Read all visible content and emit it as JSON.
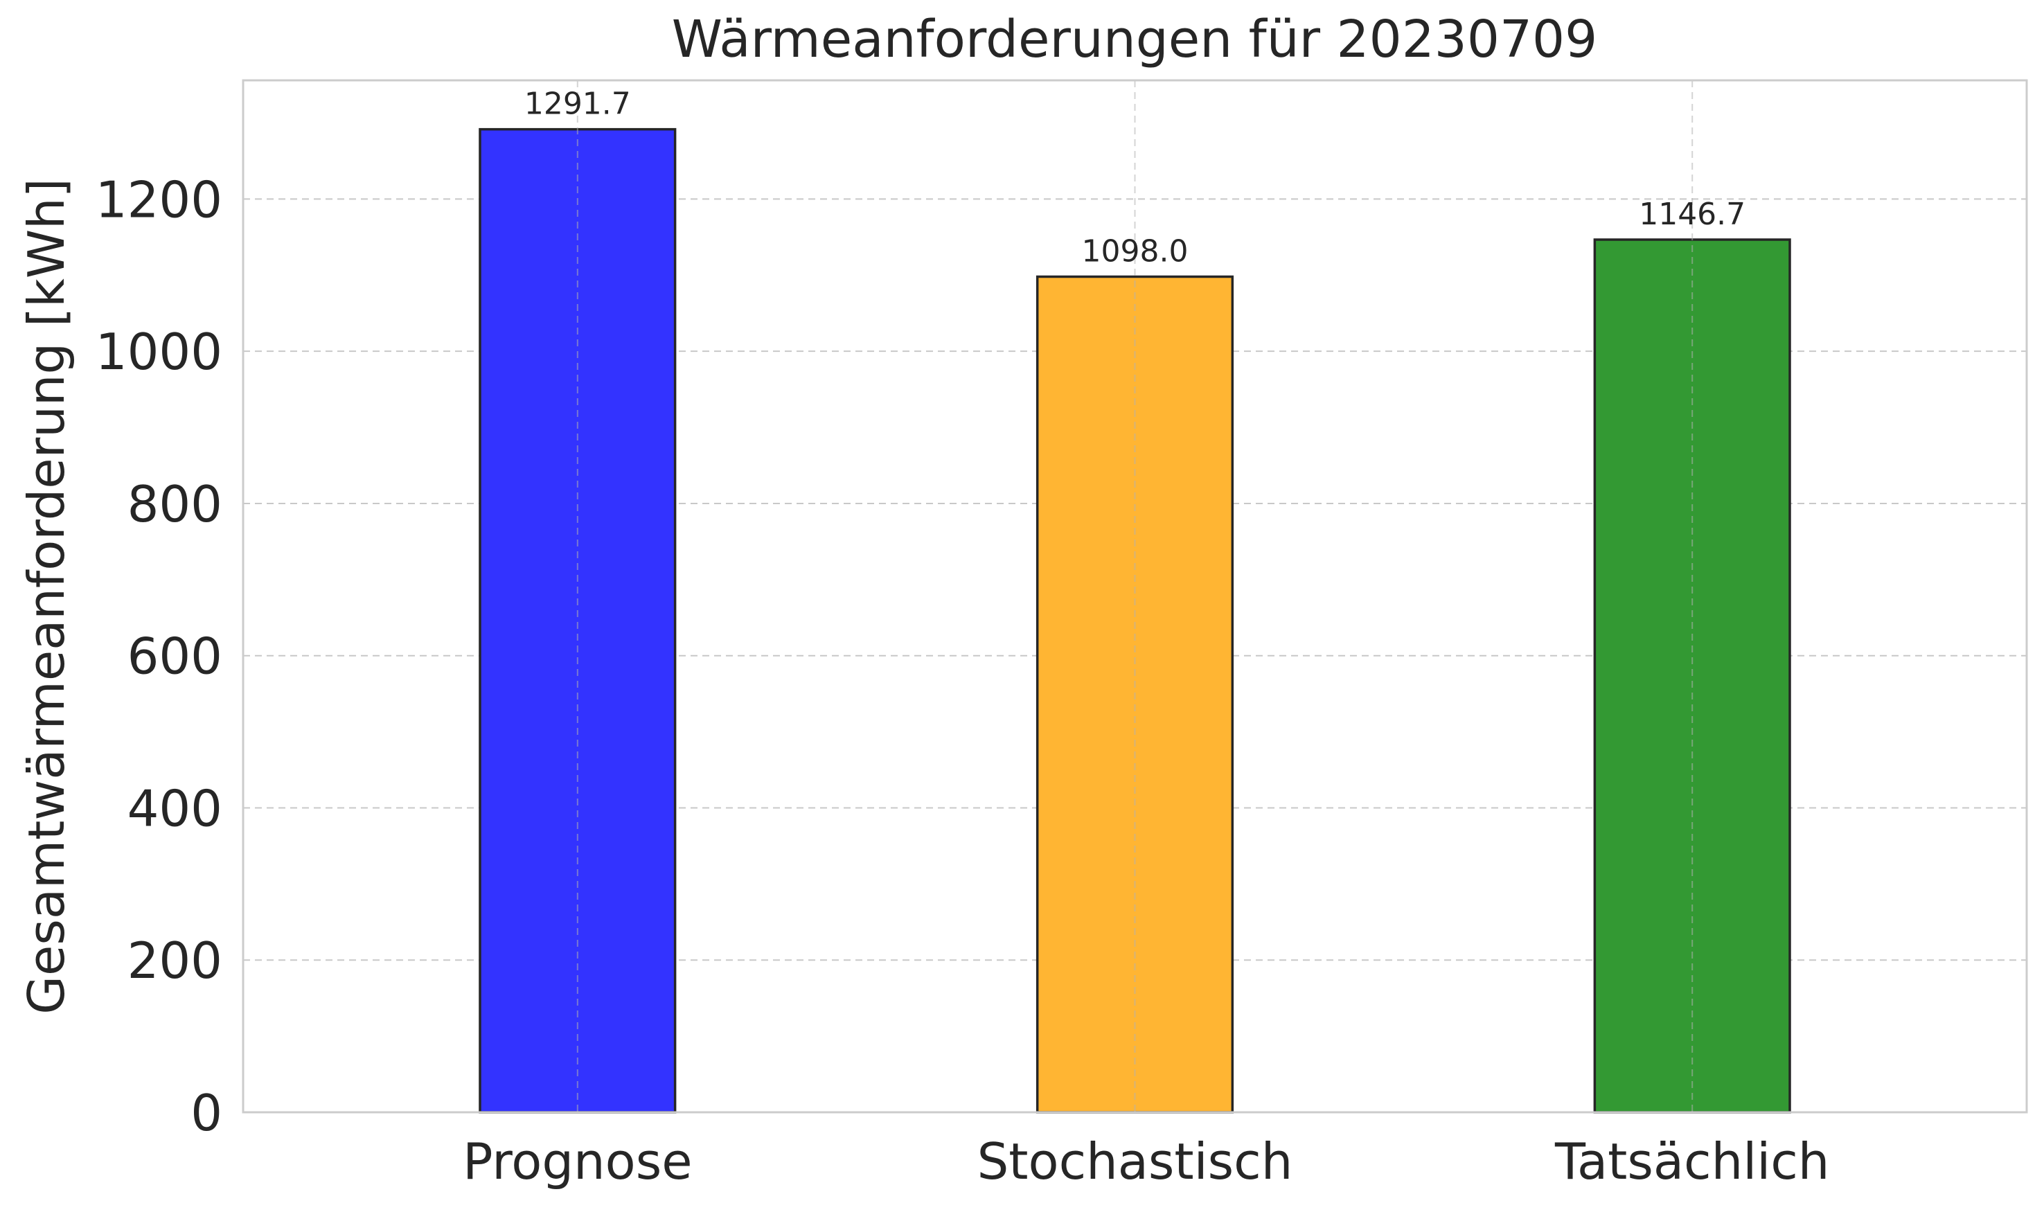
{
  "chart_data": {
    "type": "bar",
    "title": "Wärmeanforderungen für 20230709",
    "xlabel": "",
    "ylabel": "Gesamtwärmeanforderung [kWh]",
    "categories": [
      "Prognose",
      "Stochastisch",
      "Tatsächlich"
    ],
    "values": [
      1291.7,
      1098.0,
      1146.7
    ],
    "value_labels": [
      "1291.7",
      "1098.0",
      "1146.7"
    ],
    "colors": [
      "#3333ff",
      "#ffb533",
      "#339933"
    ],
    "edge_color": "#262626",
    "ylim": [
      0,
      1356
    ],
    "yticks": [
      0,
      200,
      400,
      600,
      800,
      1000,
      1200
    ],
    "ytick_labels": [
      "0",
      "200",
      "400",
      "600",
      "800",
      "1000",
      "1200"
    ],
    "grid": true,
    "legend": "none"
  }
}
